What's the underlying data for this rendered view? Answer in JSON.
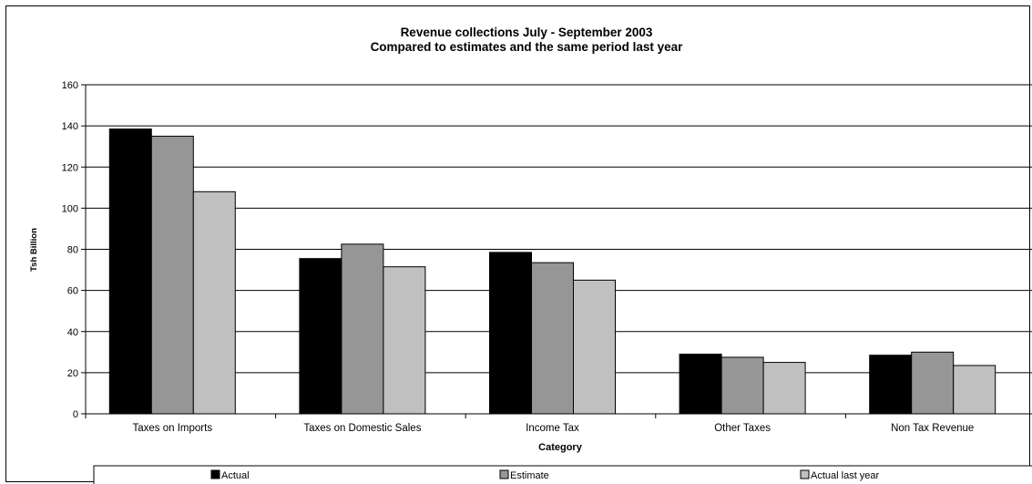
{
  "chart_data": {
    "type": "bar",
    "title": "Revenue collections July - September 2003",
    "subtitle": "Compared to estimates and the same period last year",
    "xlabel": "Category",
    "ylabel": "Tsh Billion",
    "ylim": [
      0,
      160
    ],
    "yticks": [
      "0",
      "20",
      "40",
      "60",
      "80",
      "100",
      "120",
      "140",
      "160"
    ],
    "categories": [
      "Taxes on Imports",
      "Taxes on Domestic Sales",
      "Income Tax",
      "Other Taxes",
      "Non Tax Revenue"
    ],
    "series": [
      {
        "name": "Actual",
        "color": "#000000",
        "values": [
          138.5,
          75.5,
          78.5,
          29,
          28.5
        ]
      },
      {
        "name": "Estimate",
        "color": "#969696",
        "values": [
          135,
          82.5,
          73.5,
          27.5,
          30
        ]
      },
      {
        "name": "Actual last year",
        "color": "#c0c0c0",
        "values": [
          108,
          71.5,
          65,
          25,
          23.5
        ]
      }
    ],
    "grid": true,
    "legend": "bottom"
  }
}
